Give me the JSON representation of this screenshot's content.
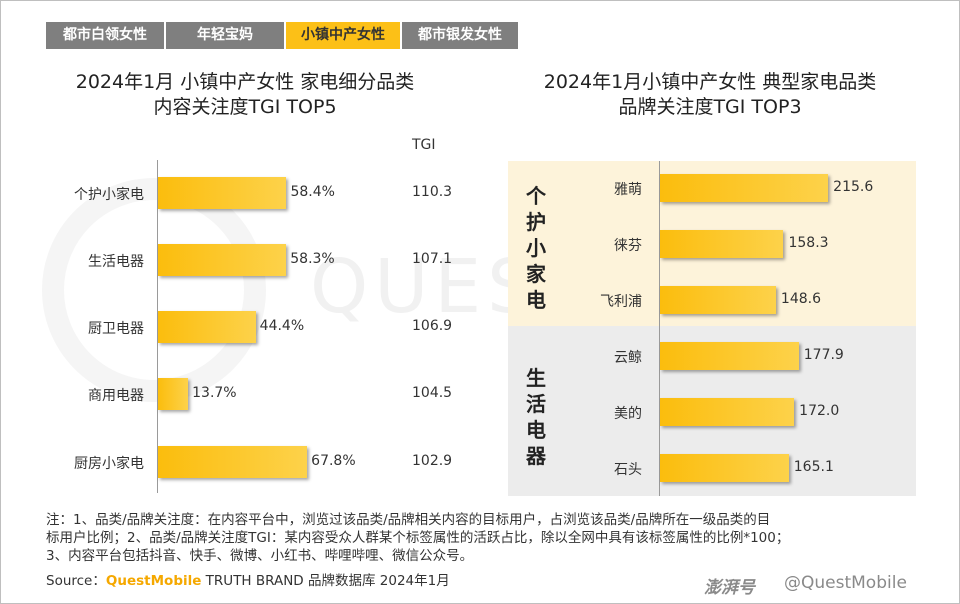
{
  "tabs": [
    {
      "label": "都市白领女性",
      "active": false
    },
    {
      "label": "年轻宝妈",
      "active": false
    },
    {
      "label": "小镇中产女性",
      "active": true
    },
    {
      "label": "都市银发女性",
      "active": false
    }
  ],
  "watermark": "QUESTMOBILE",
  "colors": {
    "accent": "#fcc017",
    "bar": "#fbbd0d",
    "tab_inactive": "#7f7f7f",
    "band_personal": "#fdf3da",
    "band_life": "#ececec"
  },
  "chart_data": [
    {
      "type": "bar",
      "orientation": "horizontal",
      "title_line1": "2024年1月 小镇中产女性 家电细分品类",
      "title_line2": "内容关注度TGI TOP5",
      "tgi_header": "TGI",
      "categories": [
        "个护小家电",
        "生活电器",
        "厨卫电器",
        "商用电器",
        "厨房小家电"
      ],
      "values": [
        58.4,
        58.3,
        44.4,
        13.7,
        67.8
      ],
      "value_labels": [
        "58.4%",
        "58.3%",
        "44.4%",
        "13.7%",
        "67.8%"
      ],
      "tgi": [
        "110.3",
        "107.1",
        "106.9",
        "104.5",
        "102.9"
      ]
    },
    {
      "type": "bar",
      "orientation": "horizontal",
      "title_line1": "2024年1月小镇中产女性 典型家电品类",
      "title_line2": "品牌关注度TGI TOP3",
      "groups": [
        {
          "name": "个护小家电",
          "brands": [
            "雅萌",
            "徕芬",
            "飞利浦"
          ],
          "values": [
            215.6,
            158.3,
            148.6
          ]
        },
        {
          "name": "生活电器",
          "brands": [
            "云鲸",
            "美的",
            "石头"
          ],
          "values": [
            177.9,
            172.0,
            165.1
          ]
        }
      ],
      "value_labels": [
        "215.6",
        "158.3",
        "148.6",
        "177.9",
        "172.0",
        "165.1"
      ]
    }
  ],
  "notes": {
    "line1": "注：1、品类/品牌关注度：在内容平台中，浏览过该品类/品牌相关内容的目标用户，占浏览该品类/品牌所在一级品类的目",
    "line2": "标用户比例；2、品类/品牌关注度TGI：某内容受众人群某个标签属性的活跃占比，除以全网中具有该标签属性的比例*100；",
    "line3": "3、内容平台包括抖音、快手、微博、小红书、哔哩哔哩、微信公众号。"
  },
  "source": {
    "prefix": "Source：",
    "brand": "QuestMobile",
    "suffix": " TRUTH BRAND 品牌数据库 2024年1月"
  },
  "footer": {
    "logo": "澎湃号",
    "handle": "@QuestMobile"
  }
}
